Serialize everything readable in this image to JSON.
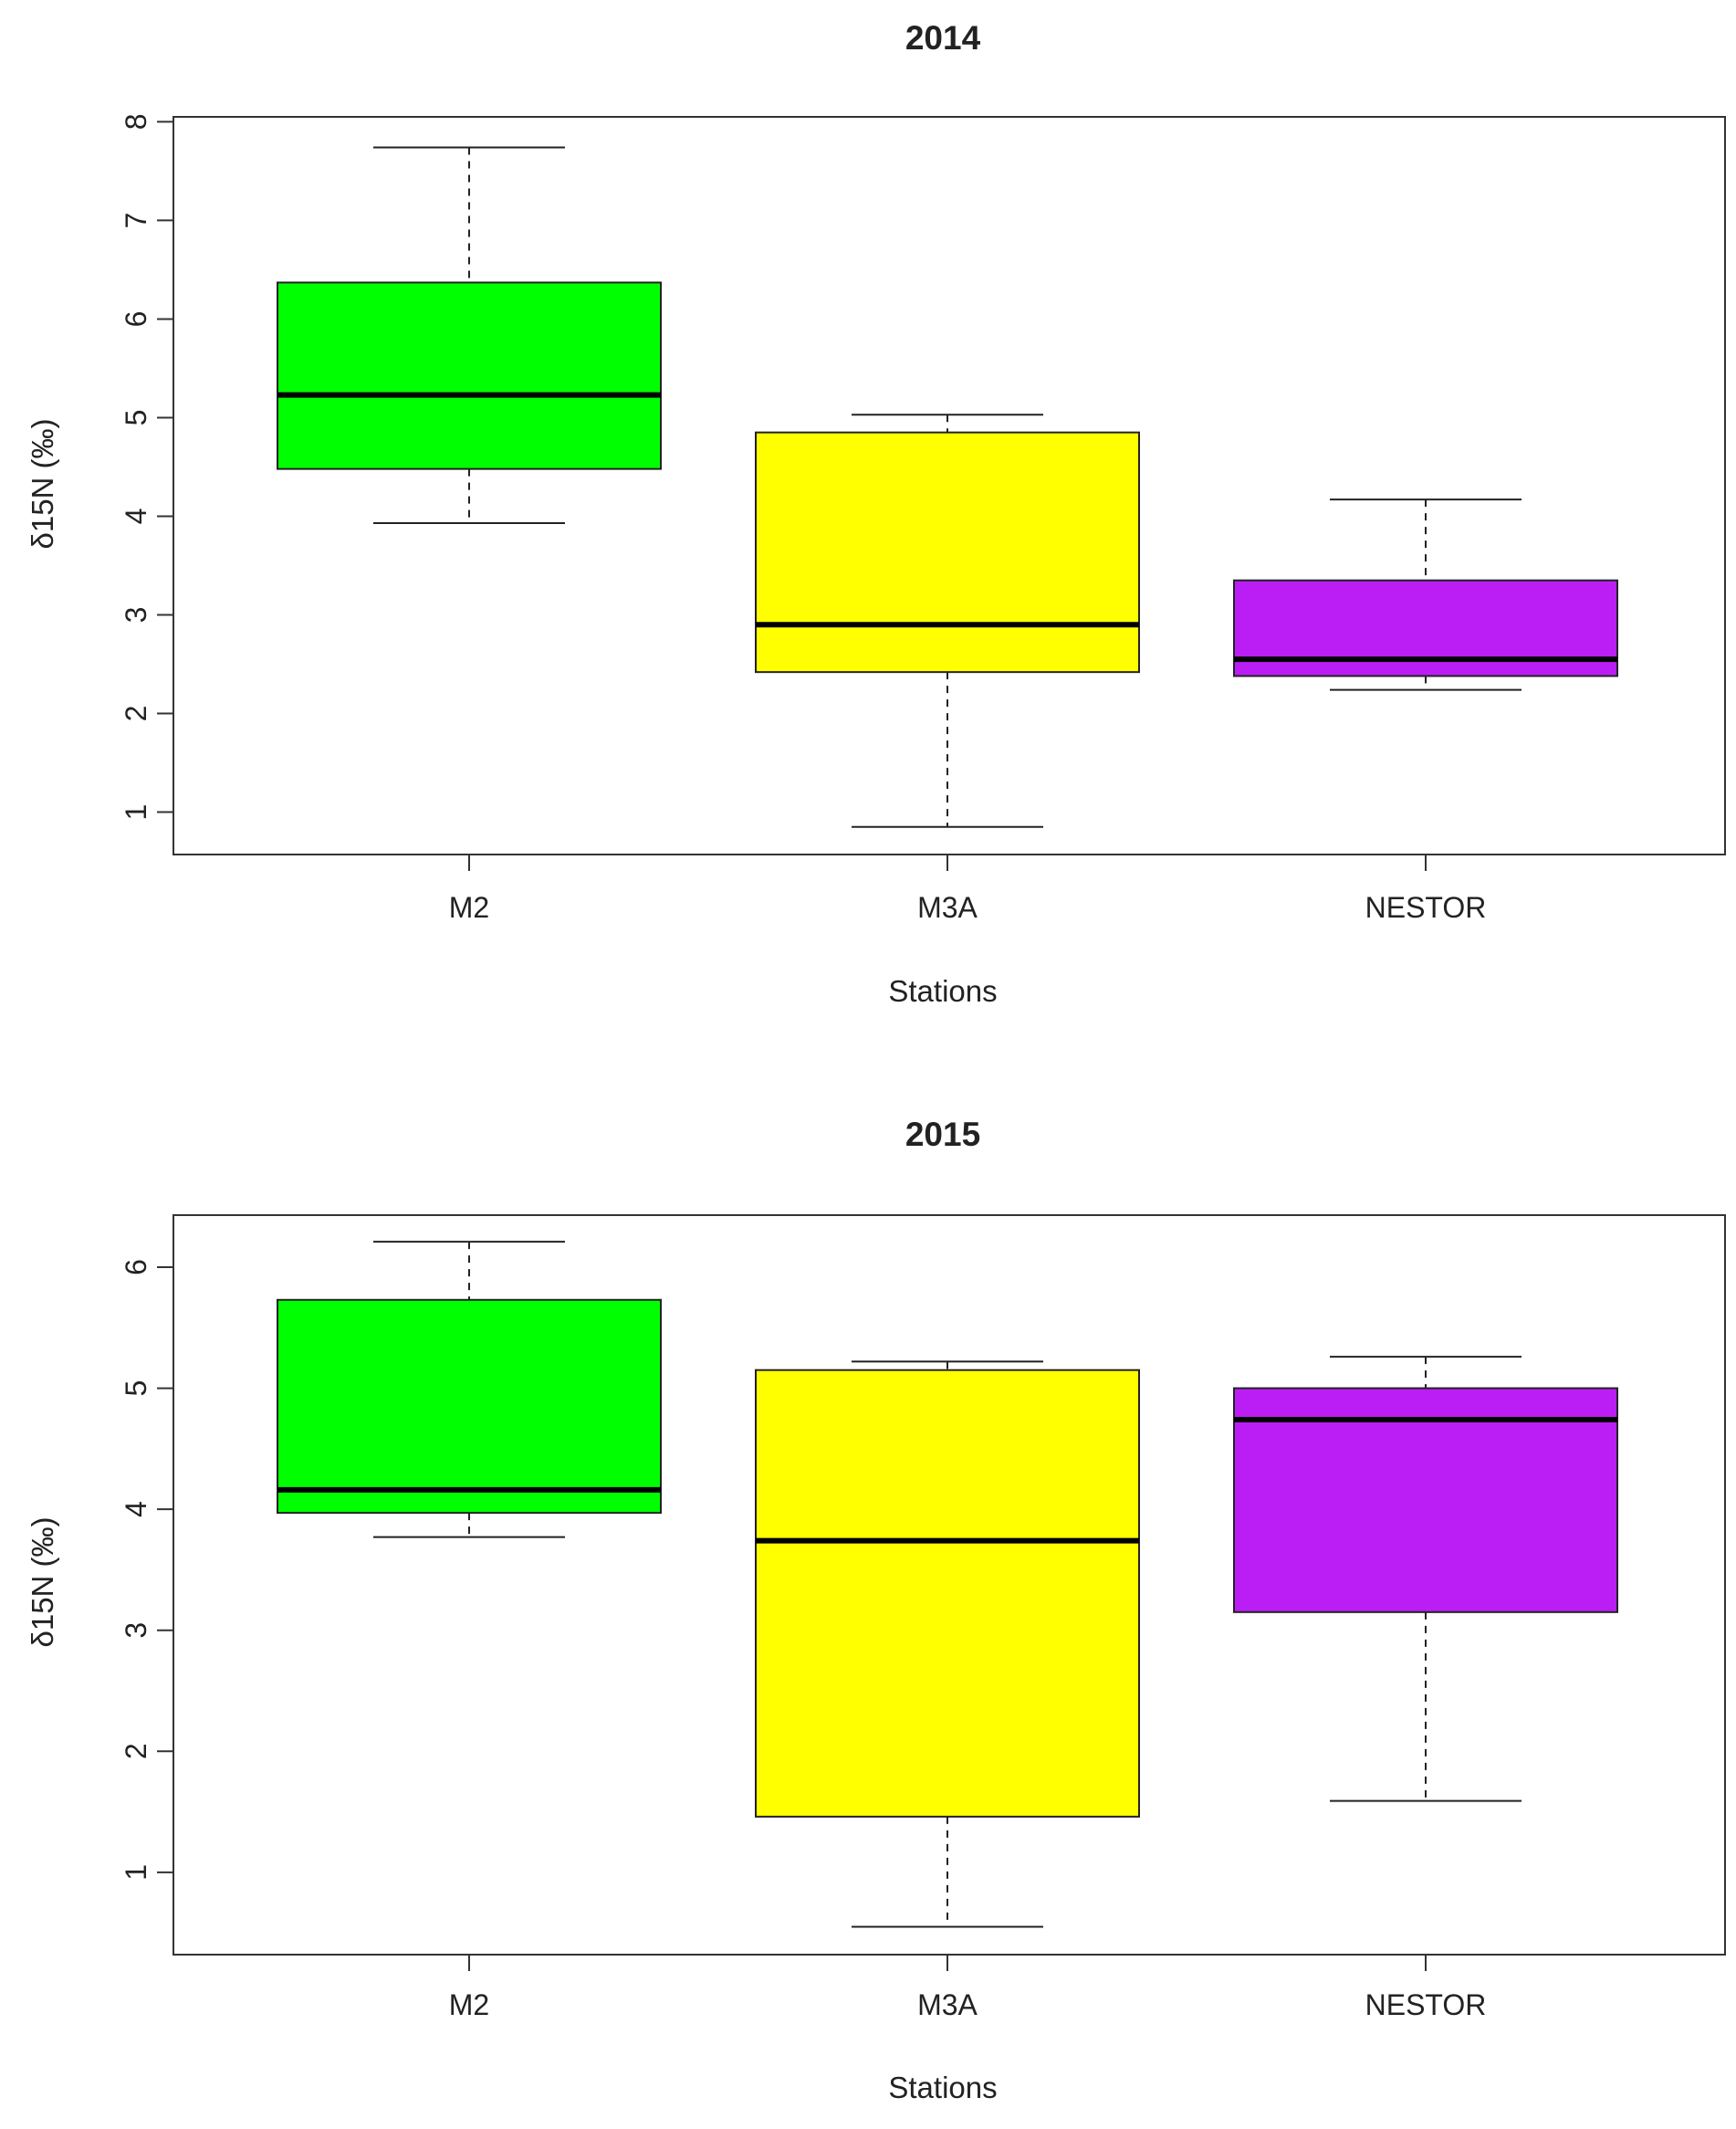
{
  "chart_data": [
    {
      "type": "boxplot",
      "title": "2014",
      "xlabel": "Stations",
      "ylabel": "δ15N (‰)",
      "categories": [
        "M2",
        "M3A",
        "NESTOR"
      ],
      "colors": [
        "#00ff00",
        "#ffff00",
        "#bb1ef5"
      ],
      "ylim": [
        0.57,
        8.05
      ],
      "yticks": [
        1,
        2,
        3,
        4,
        5,
        6,
        7,
        8
      ],
      "boxes": [
        {
          "category": "M2",
          "min": 3.93,
          "q1": 4.48,
          "median": 5.23,
          "q3": 6.37,
          "max": 7.74
        },
        {
          "category": "M3A",
          "min": 0.85,
          "q1": 2.42,
          "median": 2.9,
          "q3": 4.85,
          "max": 5.03
        },
        {
          "category": "NESTOR",
          "min": 2.24,
          "q1": 2.38,
          "median": 2.55,
          "q3": 3.35,
          "max": 4.17
        }
      ]
    },
    {
      "type": "boxplot",
      "title": "2015",
      "xlabel": "Stations",
      "ylabel": "δ15N (‰)",
      "categories": [
        "M2",
        "M3A",
        "NESTOR"
      ],
      "colors": [
        "#00ff00",
        "#ffff00",
        "#bb1ef5"
      ],
      "ylim": [
        0.32,
        6.43
      ],
      "yticks": [
        1,
        2,
        3,
        4,
        5,
        6
      ],
      "boxes": [
        {
          "category": "M2",
          "min": 3.77,
          "q1": 3.97,
          "median": 4.16,
          "q3": 5.73,
          "max": 6.21
        },
        {
          "category": "M3A",
          "min": 0.55,
          "q1": 1.46,
          "median": 3.74,
          "q3": 5.15,
          "max": 5.22
        },
        {
          "category": "NESTOR",
          "min": 1.59,
          "q1": 3.15,
          "median": 4.74,
          "q3": 5.0,
          "max": 5.26
        }
      ]
    }
  ]
}
